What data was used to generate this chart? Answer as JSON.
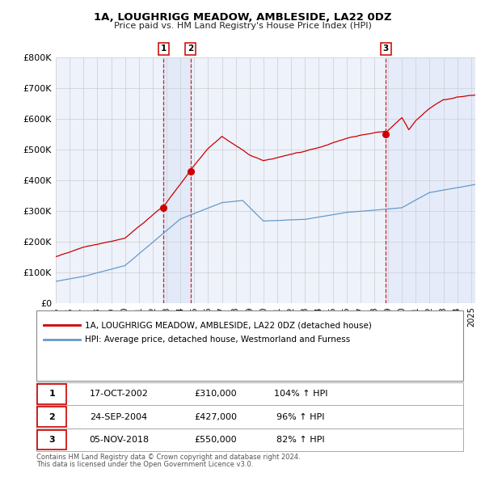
{
  "title": "1A, LOUGHRIGG MEADOW, AMBLESIDE, LA22 0DZ",
  "subtitle": "Price paid vs. HM Land Registry's House Price Index (HPI)",
  "red_label": "1A, LOUGHRIGG MEADOW, AMBLESIDE, LA22 0DZ (detached house)",
  "blue_label": "HPI: Average price, detached house, Westmorland and Furness",
  "footer1": "Contains HM Land Registry data © Crown copyright and database right 2024.",
  "footer2": "This data is licensed under the Open Government Licence v3.0.",
  "ylim": [
    0,
    800000
  ],
  "yticks": [
    0,
    100000,
    200000,
    300000,
    400000,
    500000,
    600000,
    700000,
    800000
  ],
  "ytick_labels": [
    "£0",
    "£100K",
    "£200K",
    "£300K",
    "£400K",
    "£500K",
    "£600K",
    "£700K",
    "£800K"
  ],
  "sale_years_decimal": [
    2002.79,
    2004.73,
    2018.84
  ],
  "sale_prices": [
    310000,
    427000,
    550000
  ],
  "sale_labels": [
    "1",
    "2",
    "3"
  ],
  "table_rows": [
    [
      "1",
      "17-OCT-2002",
      "£310,000",
      "104% ↑ HPI"
    ],
    [
      "2",
      "24-SEP-2004",
      "£427,000",
      "96% ↑ HPI"
    ],
    [
      "3",
      "05-NOV-2018",
      "£550,000",
      "82% ↑ HPI"
    ]
  ],
  "red_color": "#cc0000",
  "blue_color": "#6699cc",
  "bg_color": "#eef2fb",
  "grid_color": "#cccccc",
  "shade_color": "#ccd9f0",
  "vline_color": "#cc0000",
  "start_year": 1995.0,
  "end_year": 2025.3
}
